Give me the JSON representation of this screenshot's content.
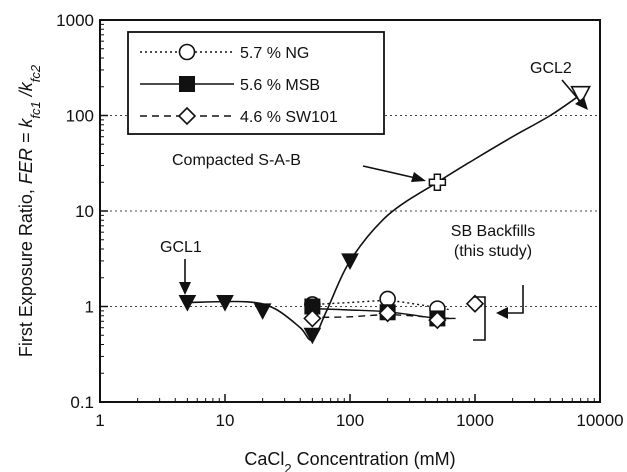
{
  "chart_data": {
    "type": "scatter",
    "x_scale": "log",
    "y_scale": "log",
    "xlim": [
      1,
      10000
    ],
    "ylim": [
      0.1,
      1000
    ],
    "xlabel_main": "CaCl",
    "xlabel_sub": "2",
    "xlabel_rest": " Concentration (mM)",
    "ylabel_main": "First Exposure Ratio, ",
    "ylabel_italic": "FER = k",
    "ylabel_sub1": "fc1",
    "ylabel_mid": " /k",
    "ylabel_sub2": "fc2",
    "x_ticks": [
      {
        "value": 1,
        "label": "1"
      },
      {
        "value": 10,
        "label": "10"
      },
      {
        "value": 100,
        "label": "100"
      },
      {
        "value": 1000,
        "label": "1000"
      },
      {
        "value": 10000,
        "label": "10000"
      }
    ],
    "y_ticks": [
      {
        "value": 0.1,
        "label": "0.1"
      },
      {
        "value": 1,
        "label": "1"
      },
      {
        "value": 10,
        "label": "10"
      },
      {
        "value": 100,
        "label": "100"
      },
      {
        "value": 1000,
        "label": "1000"
      }
    ],
    "gridlines_y": [
      1,
      10,
      100
    ],
    "series": [
      {
        "name": "5.7 % NG",
        "marker": "open-circle",
        "line": "dotted",
        "points": [
          [
            50,
            1.05
          ],
          [
            200,
            1.2
          ],
          [
            500,
            0.95
          ]
        ],
        "curve": [
          [
            50,
            1.05
          ],
          [
            100,
            1.1
          ],
          [
            200,
            1.15
          ],
          [
            350,
            1.05
          ],
          [
            500,
            0.97
          ],
          [
            650,
            0.92
          ]
        ]
      },
      {
        "name": "5.6 % MSB",
        "marker": "filled-square",
        "line": "solid",
        "points": [
          [
            50,
            1.0
          ],
          [
            200,
            0.87
          ],
          [
            500,
            0.75
          ]
        ],
        "curve": [
          [
            50,
            0.95
          ],
          [
            100,
            0.92
          ],
          [
            200,
            0.88
          ],
          [
            350,
            0.8
          ],
          [
            500,
            0.75
          ],
          [
            700,
            0.75
          ]
        ]
      },
      {
        "name": "4.6 % SW101",
        "marker": "open-diamond",
        "line": "dashed",
        "points": [
          [
            50,
            0.75
          ],
          [
            200,
            0.85
          ],
          [
            500,
            0.72
          ],
          [
            1000,
            1.07
          ]
        ],
        "curve": [
          [
            60,
            0.77
          ],
          [
            100,
            0.78
          ],
          [
            200,
            0.82
          ],
          [
            400,
            0.78
          ],
          [
            650,
            0.75
          ]
        ]
      }
    ],
    "reference_data": {
      "gcl_points": [
        [
          5,
          1.1
        ],
        [
          10,
          1.1
        ],
        [
          20,
          0.9
        ],
        [
          50,
          0.5
        ],
        [
          100,
          3
        ]
      ],
      "gcl_curve": [
        [
          5,
          1.1
        ],
        [
          15,
          1.12
        ],
        [
          25,
          0.95
        ],
        [
          40,
          0.6
        ],
        [
          50,
          0.45
        ],
        [
          65,
          0.9
        ],
        [
          100,
          3
        ],
        [
          200,
          9
        ],
        [
          500,
          20
        ],
        [
          1000,
          35
        ],
        [
          2000,
          60
        ],
        [
          4000,
          100
        ],
        [
          7000,
          165
        ]
      ],
      "compacted_sab_point": [
        500,
        20
      ],
      "gcl2_point": [
        7000,
        165
      ]
    },
    "annotations": {
      "gcl1": "GCL1",
      "gcl2": "GCL2",
      "compacted": "Compacted S-A-B",
      "sb_line1": "SB Backfills",
      "sb_line2": "(this study)"
    }
  }
}
